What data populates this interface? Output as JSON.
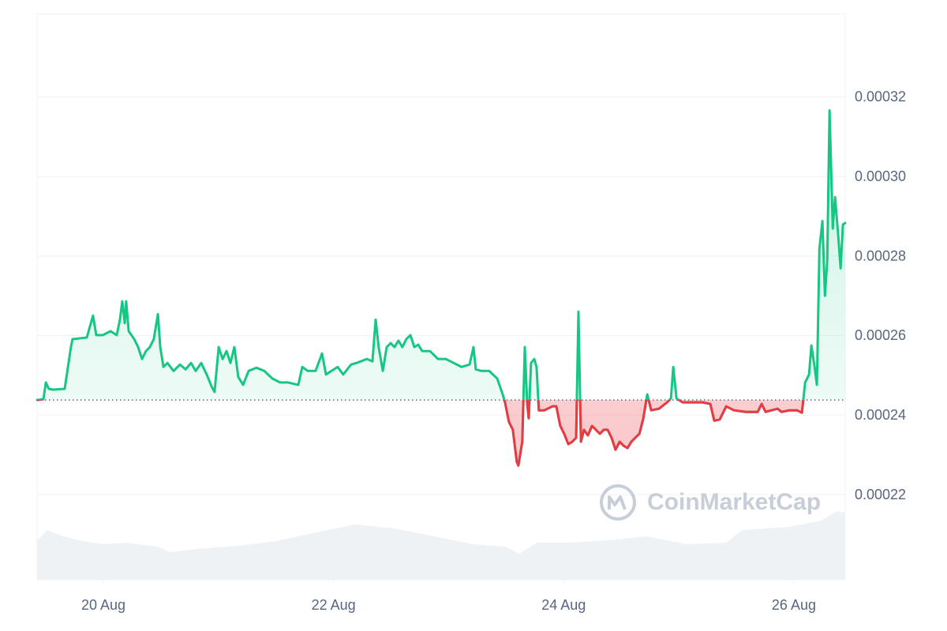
{
  "chart_data": {
    "type": "line",
    "x": [
      19.424,
      19.479,
      19.5,
      19.526,
      19.562,
      19.664,
      19.718,
      19.732,
      19.856,
      19.91,
      19.938,
      19.994,
      20.062,
      20.116,
      20.144,
      20.164,
      20.186,
      20.198,
      20.22,
      20.268,
      20.302,
      20.336,
      20.37,
      20.404,
      20.438,
      20.474,
      20.494,
      20.522,
      20.556,
      20.61,
      20.666,
      20.714,
      20.762,
      20.802,
      20.85,
      20.898,
      20.94,
      20.966,
      21.002,
      21.036,
      21.07,
      21.104,
      21.138,
      21.172,
      21.214,
      21.262,
      21.33,
      21.398,
      21.468,
      21.536,
      21.604,
      21.694,
      21.728,
      21.776,
      21.844,
      21.9,
      21.934,
      21.982,
      22.036,
      22.084,
      22.152,
      22.2,
      22.29,
      22.338,
      22.366,
      22.392,
      22.428,
      22.462,
      22.496,
      22.53,
      22.564,
      22.598,
      22.632,
      22.668,
      22.702,
      22.736,
      22.77,
      22.838,
      22.908,
      22.976,
      23.044,
      23.112,
      23.182,
      23.216,
      23.236,
      23.284,
      23.352,
      23.422,
      23.47,
      23.49,
      23.524,
      23.558,
      23.592,
      23.606,
      23.64,
      23.662,
      23.682,
      23.696,
      23.716,
      23.744,
      23.764,
      23.784,
      23.832,
      23.902,
      23.936,
      23.97,
      24.004,
      24.04,
      24.074,
      24.108,
      24.128,
      24.15,
      24.176,
      24.21,
      24.246,
      24.28,
      24.314,
      24.348,
      24.382,
      24.416,
      24.45,
      24.486,
      24.52,
      24.554,
      24.588,
      24.622,
      24.658,
      24.692,
      24.726,
      24.76,
      24.828,
      24.898,
      24.932,
      24.952,
      24.98,
      25.034,
      25.104,
      25.206,
      25.274,
      25.308,
      25.356,
      25.412,
      25.48,
      25.582,
      25.686,
      25.72,
      25.754,
      25.858,
      25.892,
      25.96,
      26.028,
      26.07,
      26.098,
      26.132,
      26.152,
      26.18,
      26.2,
      26.222,
      26.248,
      26.27,
      26.29,
      26.31,
      26.338,
      26.358,
      26.386,
      26.406,
      26.426,
      26.446
    ],
    "values": [
      0.0002438,
      0.000244,
      0.0002482,
      0.0002466,
      0.0002464,
      0.0002466,
      0.0002571,
      0.0002591,
      0.0002595,
      0.000265,
      0.0002601,
      0.0002601,
      0.0002611,
      0.0002601,
      0.000264,
      0.0002686,
      0.0002631,
      0.0002686,
      0.0002611,
      0.0002591,
      0.0002571,
      0.0002541,
      0.0002561,
      0.0002571,
      0.0002591,
      0.0002654,
      0.0002571,
      0.0002521,
      0.0002531,
      0.0002511,
      0.0002527,
      0.0002515,
      0.0002531,
      0.0002511,
      0.0002531,
      0.0002502,
      0.0002472,
      0.0002458,
      0.0002571,
      0.0002541,
      0.0002561,
      0.0002531,
      0.0002571,
      0.0002496,
      0.0002476,
      0.0002511,
      0.0002519,
      0.0002511,
      0.0002492,
      0.0002482,
      0.0002482,
      0.0002476,
      0.0002521,
      0.0002511,
      0.0002511,
      0.0002555,
      0.0002502,
      0.0002511,
      0.0002521,
      0.0002502,
      0.0002527,
      0.0002531,
      0.0002541,
      0.0002535,
      0.000264,
      0.0002571,
      0.0002511,
      0.0002571,
      0.0002581,
      0.0002571,
      0.0002587,
      0.0002571,
      0.0002591,
      0.0002601,
      0.0002571,
      0.0002577,
      0.0002561,
      0.0002561,
      0.0002541,
      0.0002541,
      0.0002531,
      0.0002521,
      0.0002527,
      0.0002571,
      0.0002515,
      0.0002511,
      0.0002511,
      0.0002492,
      0.0002452,
      0.0002432,
      0.0002383,
      0.0002363,
      0.0002283,
      0.0002273,
      0.0002333,
      0.0002571,
      0.0002432,
      0.0002392,
      0.0002531,
      0.0002541,
      0.0002521,
      0.0002412,
      0.0002412,
      0.0002422,
      0.0002422,
      0.0002373,
      0.0002353,
      0.0002327,
      0.0002333,
      0.0002343,
      0.000266,
      0.0002333,
      0.0002363,
      0.0002349,
      0.0002373,
      0.0002363,
      0.0002353,
      0.0002363,
      0.0002363,
      0.0002343,
      0.0002313,
      0.0002333,
      0.0002323,
      0.0002317,
      0.0002333,
      0.0002343,
      0.0002353,
      0.0002392,
      0.0002452,
      0.0002412,
      0.0002416,
      0.0002432,
      0.0002442,
      0.0002521,
      0.0002442,
      0.0002432,
      0.0002432,
      0.0002432,
      0.0002428,
      0.0002386,
      0.0002389,
      0.0002422,
      0.0002412,
      0.0002408,
      0.0002408,
      0.0002428,
      0.0002408,
      0.0002416,
      0.0002408,
      0.0002412,
      0.0002412,
      0.0002406,
      0.0002482,
      0.0002502,
      0.0002575,
      0.0002521,
      0.0002476,
      0.0002819,
      0.0002888,
      0.00027,
      0.0002789,
      0.0003166,
      0.0002869,
      0.0002948,
      0.0002849,
      0.0002769,
      0.0002879,
      0.0002883
    ],
    "color": "#16c784",
    "down_color": "#ea3943",
    "baseline": 0.0002438,
    "xlim": [
      19.424,
      26.446
    ],
    "xticks": [
      {
        "value": 20,
        "label": "20 Aug"
      },
      {
        "value": 22,
        "label": "22 Aug"
      },
      {
        "value": 24,
        "label": "24 Aug"
      },
      {
        "value": 26,
        "label": "26 Aug"
      }
    ],
    "ylim": [
      0.0001986,
      0.0003408
    ],
    "yticks": [
      0.00022,
      0.00024,
      0.00026,
      0.00028,
      {
        "value": 0.0003,
        "label": "0.00030"
      },
      0.00032
    ],
    "grid": true,
    "watermark": "CoinMarketCap",
    "volume": {
      "x": [
        19.424,
        19.513,
        19.65,
        19.787,
        19.993,
        20.199,
        20.473,
        20.576,
        20.885,
        21.159,
        21.502,
        21.845,
        22.188,
        22.531,
        22.874,
        23.217,
        23.491,
        23.615,
        23.765,
        24.04,
        24.383,
        24.726,
        25.069,
        25.412,
        25.549,
        25.96,
        26.235,
        26.372,
        26.446
      ],
      "values": [
        50,
        63,
        55,
        50,
        45,
        47,
        42,
        35,
        40,
        43,
        49,
        60,
        70,
        65,
        55,
        45,
        42,
        33,
        47,
        47,
        50,
        55,
        45,
        47,
        63,
        67,
        75,
        87,
        85
      ],
      "ylim": [
        0,
        100
      ],
      "color": "#eff2f5"
    }
  }
}
